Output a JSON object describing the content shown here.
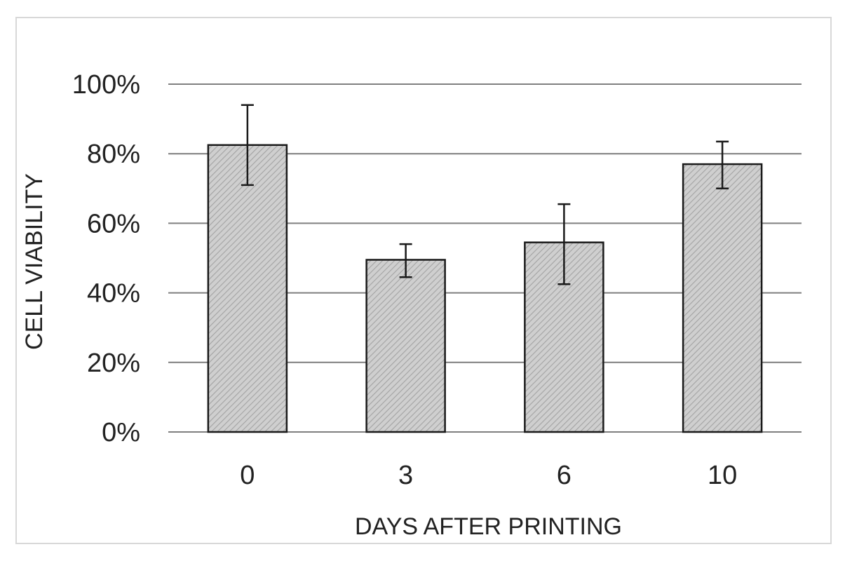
{
  "chart_data": {
    "type": "bar",
    "categories": [
      "0",
      "3",
      "6",
      "10"
    ],
    "values": [
      82.5,
      49.5,
      54.5,
      77
    ],
    "error_upper": [
      94,
      54,
      65.5,
      83.5
    ],
    "error_lower": [
      71,
      44.5,
      42.5,
      70
    ],
    "xlabel": "DAYS AFTER PRINTING",
    "ylabel": "CELL VIABILITY",
    "ylim": [
      0,
      100
    ],
    "yticks": [
      0,
      20,
      40,
      60,
      80,
      100
    ],
    "ytick_labels": [
      "0%",
      "20%",
      "40%",
      "60%",
      "80%",
      "100%"
    ],
    "grid": true,
    "legend": "none",
    "colors": {
      "bar_fill": "#c8c8c8",
      "bar_hatch": "#9a9a9a",
      "bar_stroke": "#1a1a1a",
      "grid": "#7f7f7f",
      "error_bar": "#1a1a1a"
    }
  }
}
